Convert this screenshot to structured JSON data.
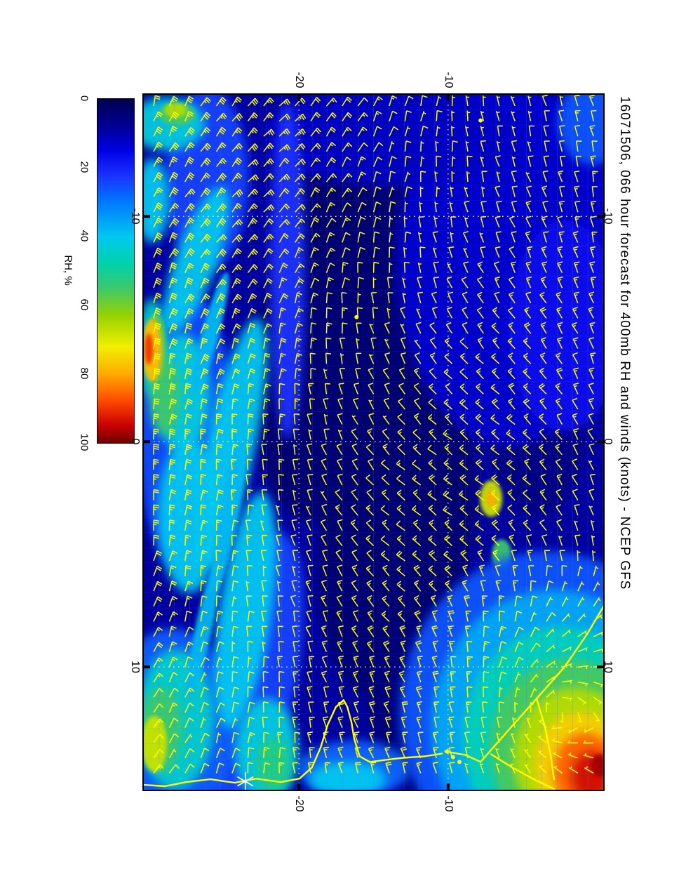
{
  "title": "16071506, 066 hour forecast for 400mb RH and winds (knots) - NCEP GFS",
  "colorbar": {
    "label": "RH, %"
  },
  "chart_data": {
    "type": "heatmap",
    "title": "16071506, 066 hour forecast for 400mb RH and winds (knots) - NCEP GFS",
    "model": "NCEP GFS",
    "init_time": "16071506",
    "forecast_hour": "066",
    "level": "400mb",
    "field": "relative humidity (%), filled contours",
    "wind_overlay": "wind barbs in knots",
    "colorbar": {
      "label": "RH, %",
      "ticks": [
        0,
        20,
        40,
        60,
        80,
        100
      ],
      "stops": [
        [
          0,
          "#000050"
        ],
        [
          8,
          "#000096"
        ],
        [
          15,
          "#0000e6"
        ],
        [
          22,
          "#1a30ff"
        ],
        [
          30,
          "#0078ff"
        ],
        [
          40,
          "#00c8f0"
        ],
        [
          48,
          "#00d2a8"
        ],
        [
          55,
          "#3cc86c"
        ],
        [
          63,
          "#96d200"
        ],
        [
          72,
          "#f0f000"
        ],
        [
          80,
          "#ffaa00"
        ],
        [
          88,
          "#ff4600"
        ],
        [
          95,
          "#c80000"
        ],
        [
          100,
          "#6e0000"
        ]
      ]
    },
    "x_axis": {
      "ticks": [
        -20,
        -10
      ],
      "range": [
        -30.4,
        0.4
      ]
    },
    "y_axis": {
      "ticks": [
        -10,
        0,
        10
      ],
      "range": [
        -15.4,
        15.45
      ]
    },
    "grid": {
      "style": "dotted",
      "color": "#ffffdd"
    },
    "base_rh": 9,
    "blobs": [
      [
        0.458,
        0.121,
        100,
        100,
        0,
        5
      ],
      [
        0.427,
        0.354,
        120,
        260,
        10,
        4
      ],
      [
        0.55,
        0.626,
        110,
        240,
        8,
        4
      ],
      [
        0.947,
        0.152,
        70,
        110,
        0,
        6
      ],
      [
        0.656,
        0.879,
        110,
        140,
        0,
        5
      ],
      [
        0.855,
        0.465,
        70,
        140,
        0,
        6
      ],
      [
        0.794,
        0.242,
        160,
        260,
        0,
        13
      ],
      [
        0.534,
        0.061,
        180,
        70,
        0,
        12
      ],
      [
        0.137,
        0.121,
        60,
        130,
        0,
        24
      ],
      [
        0.313,
        0.253,
        25,
        240,
        0,
        22
      ],
      [
        0.977,
        0.04,
        50,
        60,
        0,
        26
      ],
      [
        0.916,
        0.333,
        80,
        150,
        0,
        17
      ],
      [
        0.092,
        0.485,
        70,
        200,
        0,
        25
      ],
      [
        0.244,
        0.828,
        60,
        200,
        10,
        24
      ],
      [
        0.061,
        0.909,
        90,
        140,
        0,
        27
      ],
      [
        0.458,
        0.97,
        80,
        40,
        0,
        28
      ],
      [
        0.049,
        0.042,
        55,
        38,
        0,
        42
      ],
      [
        0.018,
        0.152,
        25,
        60,
        0,
        40
      ],
      [
        0.115,
        0.237,
        30,
        110,
        20,
        40
      ],
      [
        0.018,
        0.364,
        22,
        70,
        0,
        45
      ],
      [
        0.084,
        0.429,
        40,
        85,
        0,
        42
      ],
      [
        0.191,
        0.5,
        35,
        180,
        12,
        40
      ],
      [
        0.099,
        0.606,
        45,
        110,
        0,
        40
      ],
      [
        0.221,
        0.742,
        38,
        170,
        8,
        40
      ],
      [
        0.069,
        0.899,
        55,
        100,
        0,
        44
      ],
      [
        0.267,
        0.944,
        45,
        75,
        0,
        42
      ],
      [
        0.443,
        0.985,
        55,
        25,
        0,
        40
      ],
      [
        0.145,
        0.343,
        12,
        90,
        15,
        38
      ],
      [
        0.183,
        0.606,
        14,
        110,
        10,
        38
      ],
      [
        0.13,
        0.768,
        12,
        100,
        12,
        38
      ],
      [
        0.073,
        0.028,
        26,
        16,
        0,
        56
      ],
      [
        0.046,
        0.434,
        22,
        55,
        0,
        55
      ],
      [
        0.027,
        0.364,
        14,
        48,
        0,
        58
      ],
      [
        0.038,
        0.914,
        30,
        60,
        0,
        55
      ],
      [
        0.282,
        0.965,
        25,
        40,
        0,
        52
      ],
      [
        0.069,
        0.022,
        16,
        10,
        0,
        66
      ],
      [
        0.018,
        0.366,
        9,
        34,
        0,
        70
      ],
      [
        0.023,
        0.934,
        18,
        40,
        0,
        68
      ],
      [
        0.018,
        0.368,
        14,
        45,
        0,
        78
      ],
      [
        0.011,
        0.366,
        6,
        22,
        0,
        90
      ],
      [
        0.756,
        0.581,
        16,
        26,
        0,
        68
      ],
      [
        0.756,
        0.581,
        7,
        12,
        0,
        80
      ],
      [
        0.779,
        0.662,
        14,
        22,
        0,
        55
      ],
      [
        0.878,
        0.889,
        210,
        230,
        0,
        26
      ],
      [
        0.893,
        0.909,
        175,
        195,
        0,
        36
      ],
      [
        0.908,
        0.927,
        140,
        160,
        0,
        46
      ],
      [
        0.924,
        0.941,
        112,
        128,
        0,
        56
      ],
      [
        0.939,
        0.954,
        88,
        100,
        0,
        66
      ],
      [
        0.951,
        0.965,
        66,
        76,
        0,
        76
      ],
      [
        0.962,
        0.973,
        46,
        54,
        0,
        86
      ],
      [
        0.974,
        0.98,
        28,
        34,
        0,
        94
      ],
      [
        0.992,
        0.965,
        12,
        16,
        0,
        97
      ]
    ],
    "coast_color": "#ffff00",
    "coastlines": [
      [
        [
          0,
          0.993
        ],
        [
          0.046,
          0.995
        ],
        [
          0.092,
          0.989
        ],
        [
          0.145,
          0.985
        ],
        [
          0.198,
          0.99
        ],
        [
          0.244,
          0.984
        ],
        [
          0.298,
          0.989
        ],
        [
          0.339,
          0.984
        ],
        [
          0.366,
          0.968
        ],
        [
          0.385,
          0.939
        ],
        [
          0.4,
          0.907
        ],
        [
          0.418,
          0.881
        ],
        [
          0.435,
          0.871
        ],
        [
          0.443,
          0.881
        ],
        [
          0.452,
          0.903
        ],
        [
          0.458,
          0.927
        ],
        [
          0.47,
          0.952
        ],
        [
          0.492,
          0.96
        ],
        [
          0.527,
          0.957
        ],
        [
          0.565,
          0.954
        ],
        [
          0.611,
          0.952
        ],
        [
          0.649,
          0.948
        ]
      ],
      [
        [
          0.656,
          0.945
        ],
        [
          0.7,
          0.95
        ],
        [
          0.733,
          0.96
        ]
      ],
      [
        [
          0.733,
          0.96
        ],
        [
          0.794,
          0.914
        ],
        [
          0.855,
          0.869
        ],
        [
          0.916,
          0.823
        ],
        [
          0.965,
          0.776
        ],
        [
          1.0,
          0.737
        ]
      ],
      [
        [
          0.756,
          0.949
        ],
        [
          0.802,
          0.968
        ],
        [
          0.849,
          0.985
        ],
        [
          0.893,
          0.999
        ]
      ],
      [
        [
          0.855,
          0.869
        ],
        [
          0.873,
          0.909
        ],
        [
          0.885,
          0.949
        ],
        [
          0.893,
          0.985
        ]
      ]
    ],
    "markers": {
      "asterisk": {
        "fx": 0.221,
        "fy": 0.988,
        "color": "#ffffff"
      },
      "dots": [
        [
          0.66,
          0.945
        ],
        [
          0.673,
          0.953
        ],
        [
          0.687,
          0.96
        ],
        [
          0.733,
          0.037
        ],
        [
          0.463,
          0.32
        ]
      ],
      "dot_color": "#ffff00"
    },
    "barbs": {
      "color": "#ffff00",
      "step_x": 22.4,
      "step_y": 21.6,
      "shaft_length": 15
    }
  }
}
